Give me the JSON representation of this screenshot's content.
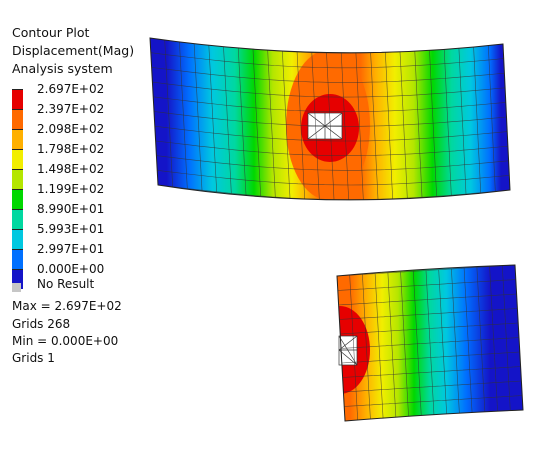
{
  "legend": {
    "title_lines": [
      "Contour Plot",
      "Displacement(Mag)",
      "Analysis system"
    ],
    "levels": [
      "2.697E+02",
      "2.397E+02",
      "2.098E+02",
      "1.798E+02",
      "1.498E+02",
      "1.199E+02",
      "8.990E+01",
      "5.993E+01",
      "2.997E+01",
      "0.000E+00"
    ],
    "band_colors": [
      "#e60000",
      "#ff6a00",
      "#ffb000",
      "#f2ee00",
      "#b4e600",
      "#00d800",
      "#00d8a0",
      "#00c8e0",
      "#0070ff",
      "#1414c8"
    ],
    "no_result_label": "No Result",
    "no_result_color": "#c6c6c6"
  },
  "stats": {
    "max_label": "Max =  2.697E+02",
    "max_grids": "Grids 268",
    "min_label": "Min =  0.000E+00",
    "min_grids": "Grids 1"
  }
}
